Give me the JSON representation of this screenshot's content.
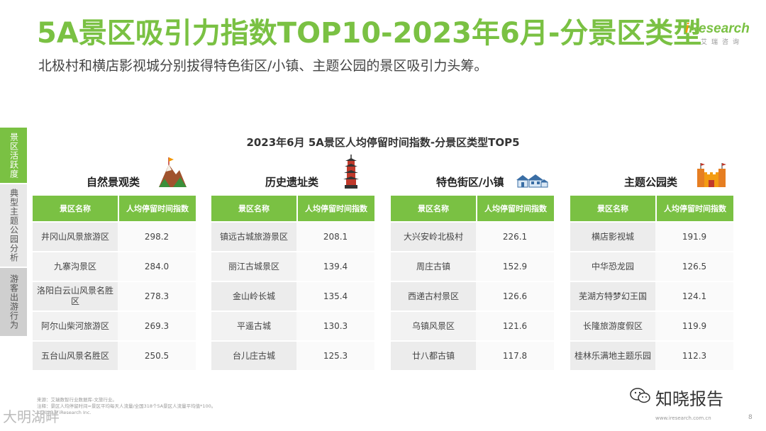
{
  "header": {
    "title": "5A景区吸引力指数TOP10-2023年6月-分景区类型",
    "subtitle": "北极村和横店影视城分别拔得特色街区/小镇、主题公园的景区吸引力头筹。"
  },
  "logo": {
    "brand": "Research",
    "brand_i": "i",
    "cn": "艾瑞咨询"
  },
  "sidebar": {
    "tabs": [
      "景区活跃度",
      "典型主题公园分析",
      "游客出游行为"
    ]
  },
  "chart_title": "2023年6月 5A景区人均停留时间指数-分景区类型TOP5",
  "table_headers": {
    "name": "景区名称",
    "index": "人均停留时间指数"
  },
  "categories": [
    {
      "name": "自然景观类",
      "icon": "mountain-icon",
      "rows": [
        {
          "name": "井冈山风景旅游区",
          "value": "298.2"
        },
        {
          "name": "九寨沟景区",
          "value": "284.0"
        },
        {
          "name": "洛阳白云山风景名胜区",
          "value": "278.3"
        },
        {
          "name": "阿尔山柴河旅游区",
          "value": "269.3"
        },
        {
          "name": "五台山风景名胜区",
          "value": "250.5"
        }
      ]
    },
    {
      "name": "历史遗址类",
      "icon": "pagoda-icon",
      "rows": [
        {
          "name": "镇远古城旅游景区",
          "value": "208.1"
        },
        {
          "name": "丽江古城景区",
          "value": "139.4"
        },
        {
          "name": "金山岭长城",
          "value": "135.4"
        },
        {
          "name": "平遥古城",
          "value": "130.3"
        },
        {
          "name": "台儿庄古城",
          "value": "125.3"
        }
      ]
    },
    {
      "name": "特色街区/小镇",
      "icon": "houses-icon",
      "rows": [
        {
          "name": "大兴安岭北极村",
          "value": "226.1"
        },
        {
          "name": "周庄古镇",
          "value": "152.9"
        },
        {
          "name": "西递古村景区",
          "value": "126.6"
        },
        {
          "name": "乌镇风景区",
          "value": "121.6"
        },
        {
          "name": "廿八都古镇",
          "value": "117.8"
        }
      ]
    },
    {
      "name": "主题公园类",
      "icon": "castle-icon",
      "rows": [
        {
          "name": "横店影视城",
          "value": "191.9"
        },
        {
          "name": "中华恐龙园",
          "value": "126.5"
        },
        {
          "name": "芜湖方特梦幻王国",
          "value": "124.1"
        },
        {
          "name": "长隆旅游度假区",
          "value": "119.9"
        },
        {
          "name": "桂林乐满地主题乐园",
          "value": "112.3"
        }
      ]
    }
  ],
  "footer": {
    "source": "来源：艾瑞数智行业数据库-文旅行业。",
    "note": "注释：景区人均停留时间=景区平均每天人流量/全国318个5A景区人流量平均值*100。",
    "copyright": "©2023.8 iResearch Inc.",
    "site": "www.iresearch.com.cn",
    "page": "8"
  },
  "watermarks": {
    "right": "知晓报告",
    "left": "大明湖畔"
  },
  "colors": {
    "accent": "#7ac143",
    "logo_i": "#f39800"
  }
}
